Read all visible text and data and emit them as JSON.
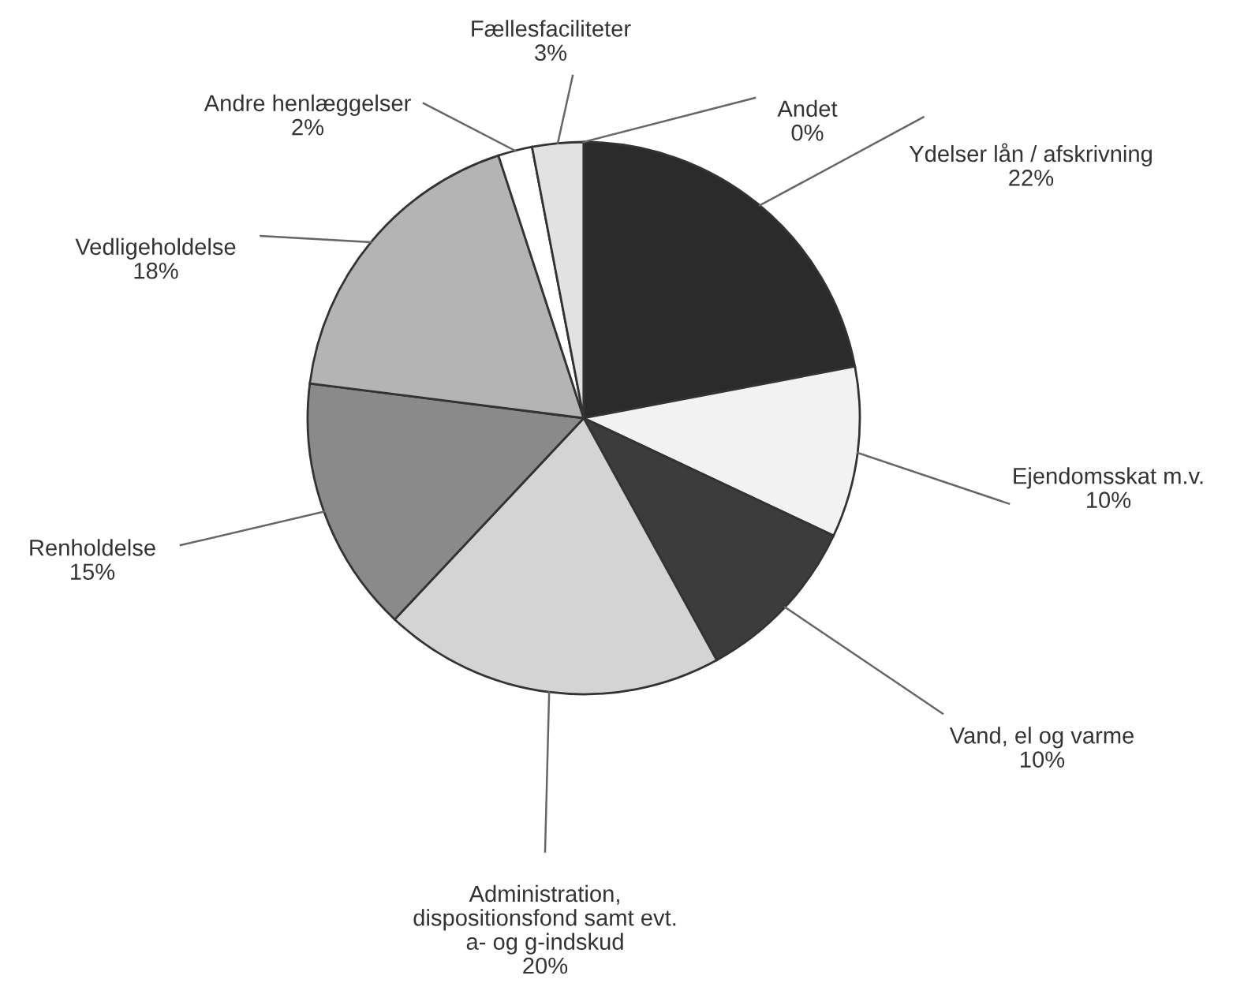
{
  "chart_data": {
    "type": "pie",
    "categories": [
      "Ydelser lån / afskrivning",
      "Ejendomsskat m.v.",
      "Vand, el og varme",
      "Administration,\ndispositionsfond samt evt.\na- og g-indskud",
      "Renholdelse",
      "Vedligeholdelse",
      "Andre henlæggelser",
      "Fællesfaciliteter",
      "Andet"
    ],
    "values": [
      22,
      10,
      10,
      20,
      15,
      18,
      2,
      3,
      0
    ],
    "value_labels": [
      "22%",
      "10%",
      "10%",
      "20%",
      "15%",
      "18%",
      "2%",
      "3%",
      "0%"
    ],
    "colors": [
      "#2b2b2b",
      "#f2f2f2",
      "#3c3c3c",
      "#d4d4d4",
      "#8a8a8a",
      "#b4b4b4",
      "#ffffff",
      "#e2e2e2",
      "#cccccc"
    ],
    "legend": false
  }
}
